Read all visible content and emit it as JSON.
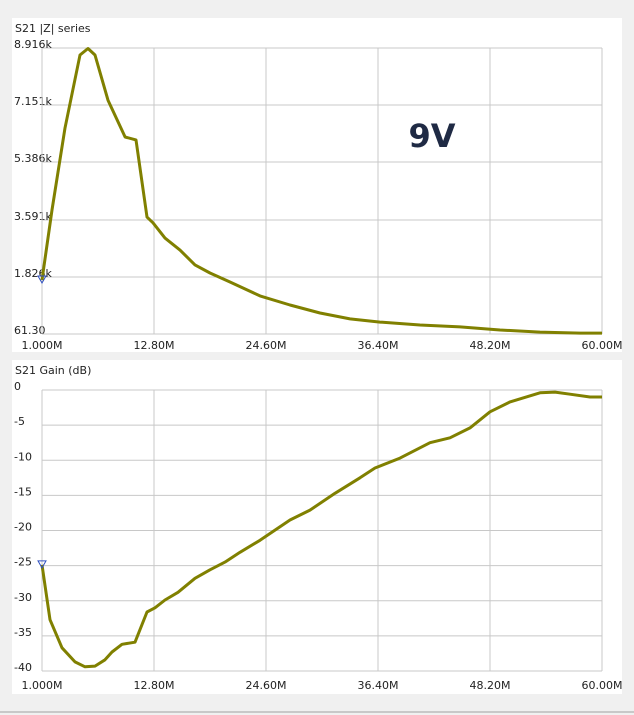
{
  "chart_data": [
    {
      "type": "line",
      "title": "S21 |Z| series",
      "annotation": "9V",
      "color": "#808000",
      "grid": true,
      "x": [
        1,
        2.05,
        3.42,
        5.0,
        5.85,
        6.58,
        7.95,
        9.75,
        10.9,
        12.06,
        12.7,
        13.96,
        15.54,
        17.12,
        18.7,
        20.81,
        23.97,
        27.13,
        30.29,
        33.45,
        36.61,
        40.83,
        45.04,
        49.25,
        53.47,
        57.68,
        60
      ],
      "values": [
        1733,
        3900,
        6440,
        8700,
        8900,
        8700,
        7300,
        6160,
        6070,
        3680,
        3500,
        3030,
        2660,
        2200,
        1950,
        1670,
        1240,
        960,
        710,
        530,
        430,
        340,
        280,
        185,
        120,
        90,
        90
      ],
      "xlim": [
        1,
        60
      ],
      "xticks": [
        {
          "value": 1,
          "label": "1.000M"
        },
        {
          "value": 12.8,
          "label": "12.80M"
        },
        {
          "value": 24.6,
          "label": "24.60M"
        },
        {
          "value": 36.4,
          "label": "36.40M"
        },
        {
          "value": 48.2,
          "label": "48.20M"
        },
        {
          "value": 60,
          "label": "60.00M"
        }
      ],
      "ylim": [
        61.3,
        8916
      ],
      "yticks": [
        {
          "value": 61.3,
          "label": "61.30"
        },
        {
          "value": 1826,
          "label": "1.826k"
        },
        {
          "value": 3591,
          "label": "3.591k"
        },
        {
          "value": 5386,
          "label": "5.386k"
        },
        {
          "value": 7151,
          "label": "7.151k"
        },
        {
          "value": 8916,
          "label": "8.916k"
        }
      ]
    },
    {
      "type": "line",
      "title": "S21 Gain (dB)",
      "color": "#808000",
      "grid": true,
      "x": [
        1,
        1.84,
        3.11,
        4.48,
        5.53,
        6.58,
        7.64,
        8.38,
        9.43,
        10.8,
        12.06,
        12.91,
        13.96,
        15.33,
        17.12,
        18.7,
        20.28,
        21.86,
        23.97,
        27.13,
        29.24,
        31.87,
        34.5,
        36.08,
        38.72,
        41.88,
        43.99,
        46.09,
        48.2,
        50.31,
        53.47,
        55.05,
        56.63,
        58.74,
        60
      ],
      "values": [
        -24.9,
        -32.7,
        -36.7,
        -38.7,
        -39.4,
        -39.3,
        -38.4,
        -37.3,
        -36.2,
        -35.9,
        -31.6,
        -31.0,
        -29.9,
        -28.8,
        -26.8,
        -25.6,
        -24.5,
        -23.1,
        -21.4,
        -18.5,
        -17.1,
        -14.7,
        -12.5,
        -11.1,
        -9.7,
        -7.5,
        -6.8,
        -5.4,
        -3.1,
        -1.7,
        -0.4,
        -0.3,
        -0.6,
        -1.0,
        -1.0
      ],
      "xlim": [
        1,
        60
      ],
      "xticks": [
        {
          "value": 1,
          "label": "1.000M"
        },
        {
          "value": 12.8,
          "label": "12.80M"
        },
        {
          "value": 24.6,
          "label": "24.60M"
        },
        {
          "value": 36.4,
          "label": "36.40M"
        },
        {
          "value": 48.2,
          "label": "48.20M"
        },
        {
          "value": 60,
          "label": "60.00M"
        }
      ],
      "ylim": [
        -40,
        0
      ],
      "yticks": [
        -40,
        -35,
        -30,
        -25,
        -20,
        -15,
        -10,
        -5,
        0
      ]
    }
  ]
}
